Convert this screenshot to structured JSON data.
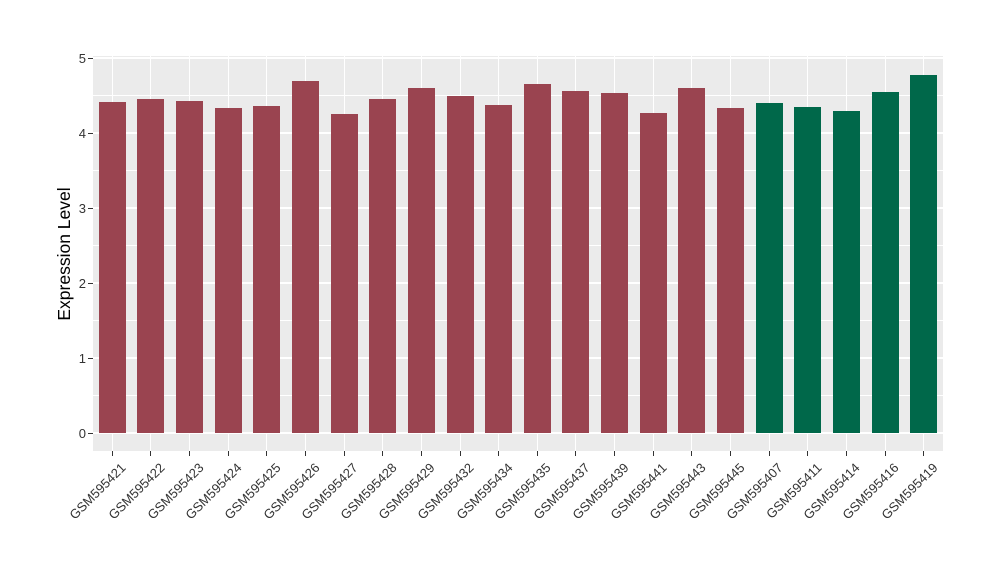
{
  "figure": {
    "background": "#FFFFFF",
    "panel_background": "#EBEBEB",
    "gridline_color": "#FFFFFF",
    "tick_color": "#333333",
    "axis_text_color": "#333333"
  },
  "chart_data": {
    "type": "bar",
    "title": "",
    "xlabel": "",
    "ylabel": "Expression Level",
    "ylim": [
      0,
      5
    ],
    "yticks": [
      0,
      1,
      2,
      3,
      4,
      5
    ],
    "yticks_minor": [
      0.5,
      1.5,
      2.5,
      3.5,
      4.5
    ],
    "grid": "on",
    "legend_position": "none",
    "categories": [
      "GSM595421",
      "GSM595422",
      "GSM595423",
      "GSM595424",
      "GSM595425",
      "GSM595426",
      "GSM595427",
      "GSM595428",
      "GSM595429",
      "GSM595432",
      "GSM595434",
      "GSM595435",
      "GSM595437",
      "GSM595439",
      "GSM595441",
      "GSM595443",
      "GSM595445",
      "GSM595407",
      "GSM595411",
      "GSM595414",
      "GSM595416",
      "GSM595419"
    ],
    "values": [
      4.41,
      4.46,
      4.43,
      4.33,
      4.36,
      4.69,
      4.26,
      4.46,
      4.6,
      4.49,
      4.38,
      4.65,
      4.56,
      4.54,
      4.27,
      4.6,
      4.34,
      4.4,
      4.35,
      4.29,
      4.55,
      4.78
    ],
    "groups": [
      "red",
      "red",
      "red",
      "red",
      "red",
      "red",
      "red",
      "red",
      "red",
      "red",
      "red",
      "red",
      "red",
      "red",
      "red",
      "red",
      "red",
      "green",
      "green",
      "green",
      "green",
      "green"
    ],
    "group_colors": {
      "red": "#9A4450",
      "green": "#00684A"
    }
  }
}
